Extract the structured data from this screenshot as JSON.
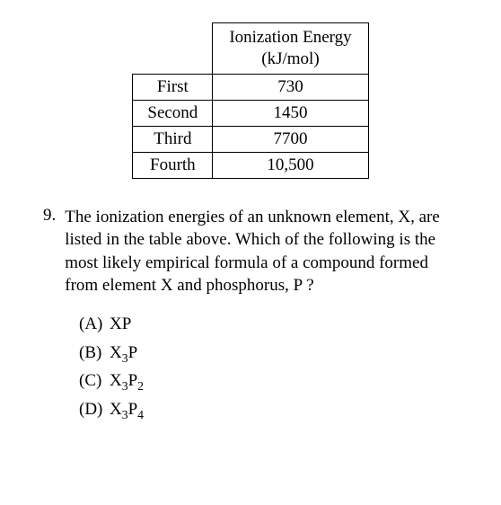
{
  "table": {
    "header": {
      "line1": "Ionization Energy",
      "line2": "(kJ/mol)"
    },
    "rows": [
      {
        "label": "First",
        "value": "730"
      },
      {
        "label": "Second",
        "value": "1450"
      },
      {
        "label": "Third",
        "value": "7700"
      },
      {
        "label": "Fourth",
        "value": "10,500"
      }
    ],
    "border_color": "#000000",
    "background_color": "#ffffff",
    "text_color": "#000000",
    "font_family": "Times New Roman",
    "font_size": 19
  },
  "question": {
    "number": "9.",
    "text_part1": "The ionization energies of an unknown element, X, are listed in the table above. Which of the following is the most likely empirical formula of a compound formed from element X and phosphorus, P ?"
  },
  "options": [
    {
      "label": "(A)",
      "base1": "X",
      "sub1": "",
      "base2": "P",
      "sub2": ""
    },
    {
      "label": "(B)",
      "base1": "X",
      "sub1": "3",
      "base2": "P",
      "sub2": ""
    },
    {
      "label": "(C)",
      "base1": "X",
      "sub1": "3",
      "base2": "P",
      "sub2": "2"
    },
    {
      "label": "(D)",
      "base1": "X",
      "sub1": "3",
      "base2": "P",
      "sub2": "4"
    }
  ],
  "colors": {
    "background": "#ffffff",
    "text": "#000000",
    "border": "#000000"
  }
}
